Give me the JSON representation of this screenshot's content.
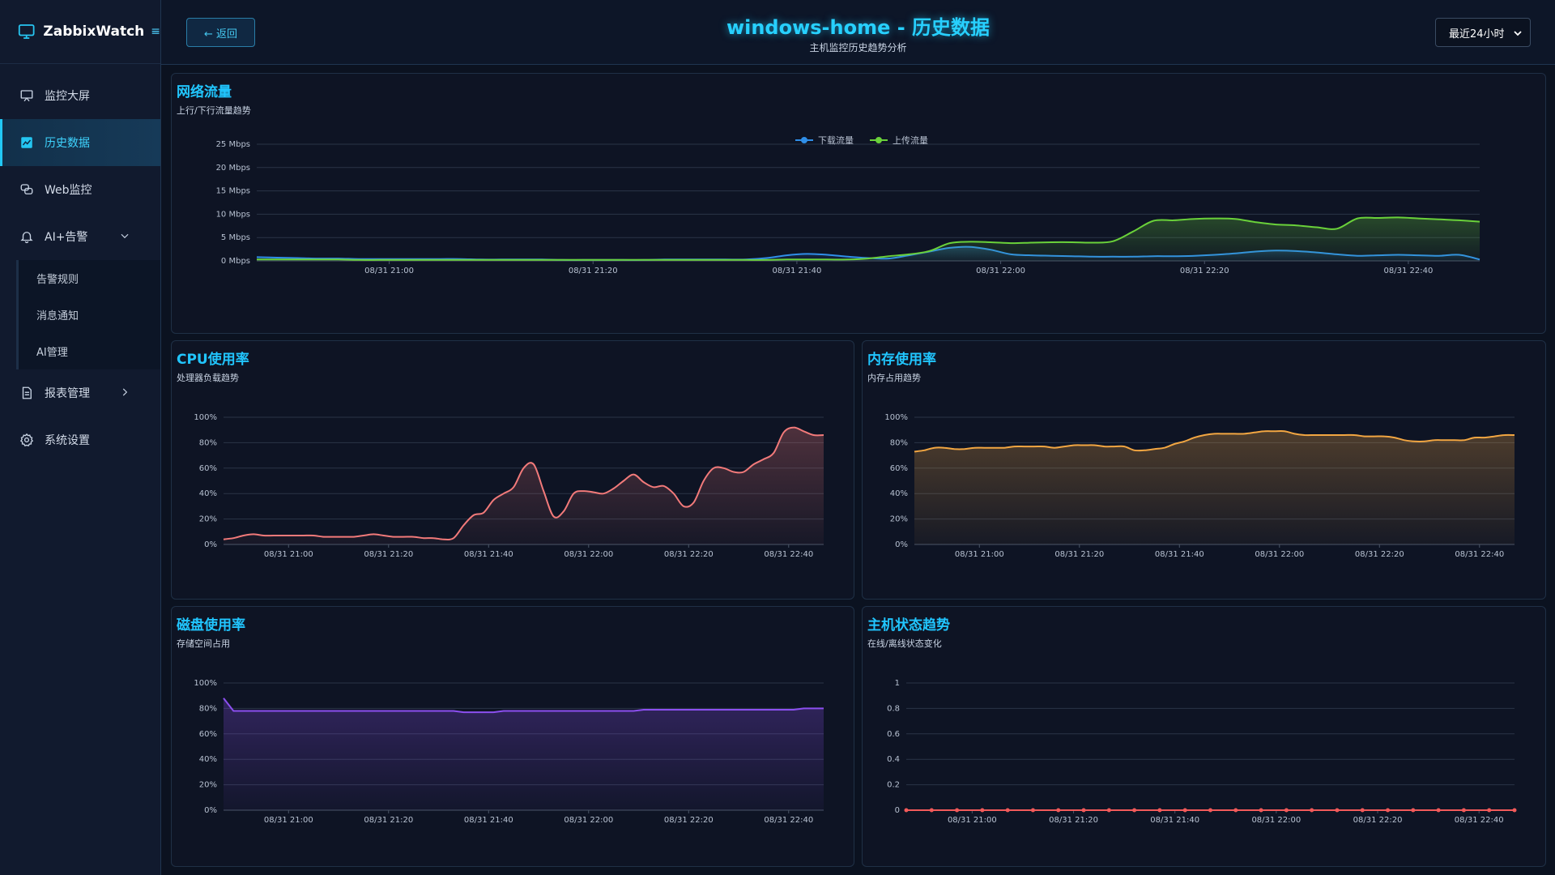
{
  "app": {
    "name": "ZabbixWatch"
  },
  "sidebar": {
    "items": [
      {
        "label": "监控大屏",
        "icon": "presentation-icon"
      },
      {
        "label": "历史数据",
        "icon": "chart-icon",
        "active": true
      },
      {
        "label": "Web监控",
        "icon": "chat-icon"
      },
      {
        "label": "AI+告警",
        "icon": "bell-icon",
        "expanded": true
      },
      {
        "label": "报表管理",
        "icon": "document-icon"
      },
      {
        "label": "系统设置",
        "icon": "gear-icon"
      }
    ],
    "submenu": [
      {
        "label": "告警规则"
      },
      {
        "label": "消息通知"
      },
      {
        "label": "AI管理"
      }
    ]
  },
  "header": {
    "back_label": "← 返回",
    "title": "windows-home - 历史数据",
    "subtitle": "主机监控历史趋势分析",
    "range_value": "最近24小时"
  },
  "colors": {
    "accent": "#21c6ff",
    "download": "#2f8ee8",
    "upload": "#6ad13a",
    "cpu": "#f27a7a",
    "memory": "#f2a642",
    "disk": "#8c4ff0",
    "status": "#f25a5a"
  },
  "time_labels": [
    "08/31 21:00",
    "08/31 21:20",
    "08/31 21:40",
    "08/31 22:00",
    "08/31 22:20",
    "08/31 22:40"
  ],
  "chart_data": [
    {
      "id": "network",
      "type": "area",
      "title": "网络流量",
      "subtitle": "上行/下行流量趋势",
      "x_range": [
        "08/31 20:47",
        "08/31 22:48"
      ],
      "ylim": [
        0,
        25
      ],
      "ylabel": "",
      "y_ticks": [
        "0 Mbps",
        "5 Mbps",
        "10 Mbps",
        "15 Mbps",
        "20 Mbps",
        "25 Mbps"
      ],
      "legend_position": "top-center",
      "grid": true,
      "x": [
        0,
        2,
        4,
        6,
        8,
        10,
        12,
        14,
        16,
        18,
        20,
        22,
        24,
        26,
        28,
        30,
        32,
        34,
        36,
        38,
        40,
        42,
        44,
        46,
        48,
        50,
        52,
        54,
        56,
        58,
        60,
        62,
        64,
        66,
        68,
        70,
        72,
        74,
        76,
        78,
        80,
        82,
        84,
        86,
        88,
        90,
        92,
        94,
        96,
        98,
        100,
        102,
        104,
        106,
        108,
        110,
        112,
        114,
        116,
        118,
        120
      ],
      "series": [
        {
          "name": "下载流量",
          "values": [
            0.8,
            0.7,
            0.6,
            0.5,
            0.5,
            0.4,
            0.4,
            0.4,
            0.4,
            0.4,
            0.4,
            0.3,
            0.3,
            0.3,
            0.3,
            0.2,
            0.2,
            0.2,
            0.2,
            0.2,
            0.3,
            0.3,
            0.3,
            0.3,
            0.3,
            0.6,
            1.2,
            1.5,
            1.3,
            0.9,
            0.6,
            0.5,
            1.2,
            2.0,
            2.8,
            3.0,
            2.4,
            1.4,
            1.2,
            1.1,
            1.0,
            0.9,
            0.9,
            0.9,
            1.0,
            1.0,
            1.1,
            1.3,
            1.6,
            2.0,
            2.2,
            2.1,
            1.8,
            1.4,
            1.1,
            1.2,
            1.3,
            1.2,
            1.1,
            1.3,
            0.3
          ]
        },
        {
          "name": "上传流量",
          "values": [
            0.3,
            0.3,
            0.3,
            0.3,
            0.3,
            0.2,
            0.2,
            0.2,
            0.2,
            0.2,
            0.2,
            0.2,
            0.2,
            0.2,
            0.2,
            0.2,
            0.2,
            0.2,
            0.2,
            0.2,
            0.2,
            0.2,
            0.2,
            0.2,
            0.2,
            0.2,
            0.3,
            0.3,
            0.3,
            0.3,
            0.5,
            1.0,
            1.4,
            2.1,
            3.8,
            4.1,
            4.0,
            3.8,
            3.9,
            4.0,
            4.0,
            3.9,
            4.2,
            6.3,
            8.6,
            8.7,
            9.0,
            9.1,
            9.0,
            8.3,
            7.8,
            7.6,
            7.2,
            6.9,
            9.1,
            9.2,
            9.3,
            9.1,
            8.9,
            8.7,
            8.4
          ]
        }
      ]
    },
    {
      "id": "cpu",
      "type": "area",
      "title": "CPU使用率",
      "subtitle": "处理器负载趋势",
      "x_range": [
        "08/31 20:47",
        "08/31 22:48"
      ],
      "ylim": [
        0,
        100
      ],
      "ylabel": "",
      "y_ticks": [
        "0%",
        "20%",
        "40%",
        "60%",
        "80%",
        "100%"
      ],
      "grid": true,
      "x": [
        0,
        2,
        4,
        6,
        8,
        10,
        12,
        14,
        16,
        18,
        20,
        22,
        24,
        26,
        28,
        30,
        32,
        34,
        36,
        38,
        40,
        42,
        44,
        46,
        48,
        50,
        52,
        54,
        56,
        58,
        60,
        62,
        64,
        66,
        68,
        70,
        72,
        74,
        76,
        78,
        80,
        82,
        84,
        86,
        88,
        90,
        92,
        94,
        96,
        98,
        100,
        102,
        104,
        106,
        108,
        110,
        112,
        114,
        116,
        118,
        120
      ],
      "series": [
        {
          "name": "",
          "values": [
            4,
            5,
            7,
            8,
            7,
            7,
            7,
            7,
            7,
            7,
            6,
            6,
            6,
            6,
            7,
            8,
            7,
            6,
            6,
            6,
            5,
            5,
            4,
            5,
            15,
            23,
            25,
            35,
            40,
            45,
            60,
            63,
            42,
            22,
            26,
            40,
            42,
            41,
            40,
            44,
            50,
            55,
            49,
            45,
            46,
            40,
            30,
            33,
            50,
            60,
            60,
            57,
            57,
            63,
            67,
            72,
            88,
            92,
            89,
            86,
            86
          ]
        }
      ]
    },
    {
      "id": "memory",
      "type": "area",
      "title": "内存使用率",
      "subtitle": "内存占用趋势",
      "x_range": [
        "08/31 20:47",
        "08/31 22:48"
      ],
      "ylim": [
        0,
        100
      ],
      "ylabel": "",
      "y_ticks": [
        "0%",
        "20%",
        "40%",
        "60%",
        "80%",
        "100%"
      ],
      "grid": true,
      "x": [
        0,
        2,
        4,
        6,
        8,
        10,
        12,
        14,
        16,
        18,
        20,
        22,
        24,
        26,
        28,
        30,
        32,
        34,
        36,
        38,
        40,
        42,
        44,
        46,
        48,
        50,
        52,
        54,
        56,
        58,
        60,
        62,
        64,
        66,
        68,
        70,
        72,
        74,
        76,
        78,
        80,
        82,
        84,
        86,
        88,
        90,
        92,
        94,
        96,
        98,
        100,
        102,
        104,
        106,
        108,
        110,
        112,
        114,
        116,
        118,
        120
      ],
      "series": [
        {
          "name": "",
          "values": [
            73,
            74,
            76,
            76,
            75,
            75,
            76,
            76,
            76,
            76,
            77,
            77,
            77,
            77,
            76,
            77,
            78,
            78,
            78,
            77,
            77,
            77,
            74,
            74,
            75,
            76,
            79,
            81,
            84,
            86,
            87,
            87,
            87,
            87,
            88,
            89,
            89,
            89,
            87,
            86,
            86,
            86,
            86,
            86,
            86,
            85,
            85,
            85,
            84,
            82,
            81,
            81,
            82,
            82,
            82,
            82,
            84,
            84,
            85,
            86,
            86
          ]
        }
      ]
    },
    {
      "id": "disk",
      "type": "area",
      "title": "磁盘使用率",
      "subtitle": "存储空间占用",
      "x_range": [
        "08/31 20:47",
        "08/31 22:48"
      ],
      "ylim": [
        0,
        100
      ],
      "ylabel": "",
      "y_ticks": [
        "0%",
        "20%",
        "40%",
        "60%",
        "80%",
        "100%"
      ],
      "grid": true,
      "x": [
        0,
        2,
        4,
        6,
        8,
        10,
        12,
        14,
        16,
        18,
        20,
        22,
        24,
        26,
        28,
        30,
        32,
        34,
        36,
        38,
        40,
        42,
        44,
        46,
        48,
        50,
        52,
        54,
        56,
        58,
        60,
        62,
        64,
        66,
        68,
        70,
        72,
        74,
        76,
        78,
        80,
        82,
        84,
        86,
        88,
        90,
        92,
        94,
        96,
        98,
        100,
        102,
        104,
        106,
        108,
        110,
        112,
        114,
        116,
        118,
        120
      ],
      "series": [
        {
          "name": "",
          "values": [
            88,
            78,
            78,
            78,
            78,
            78,
            78,
            78,
            78,
            78,
            78,
            78,
            78,
            78,
            78,
            78,
            78,
            78,
            78,
            78,
            78,
            78,
            78,
            78,
            77,
            77,
            77,
            77,
            78,
            78,
            78,
            78,
            78,
            78,
            78,
            78,
            78,
            78,
            78,
            78,
            78,
            78,
            79,
            79,
            79,
            79,
            79,
            79,
            79,
            79,
            79,
            79,
            79,
            79,
            79,
            79,
            79,
            79,
            80,
            80,
            80
          ]
        }
      ]
    },
    {
      "id": "status",
      "type": "line",
      "title": "主机状态趋势",
      "subtitle": "在线/离线状态变化",
      "x_range": [
        "08/31 20:47",
        "08/31 22:48"
      ],
      "ylim": [
        0,
        1
      ],
      "ylabel": "",
      "y_ticks": [
        "0",
        "0.2",
        "0.4",
        "0.6",
        "0.8",
        "1"
      ],
      "grid": true,
      "x": [
        0,
        5,
        10,
        15,
        20,
        25,
        30,
        35,
        40,
        45,
        50,
        55,
        60,
        65,
        70,
        75,
        80,
        85,
        90,
        95,
        100,
        105,
        110,
        115,
        120
      ],
      "series": [
        {
          "name": "",
          "values": [
            0,
            0,
            0,
            0,
            0,
            0,
            0,
            0,
            0,
            0,
            0,
            0,
            0,
            0,
            0,
            0,
            0,
            0,
            0,
            0,
            0,
            0,
            0,
            0,
            0
          ]
        }
      ]
    }
  ]
}
